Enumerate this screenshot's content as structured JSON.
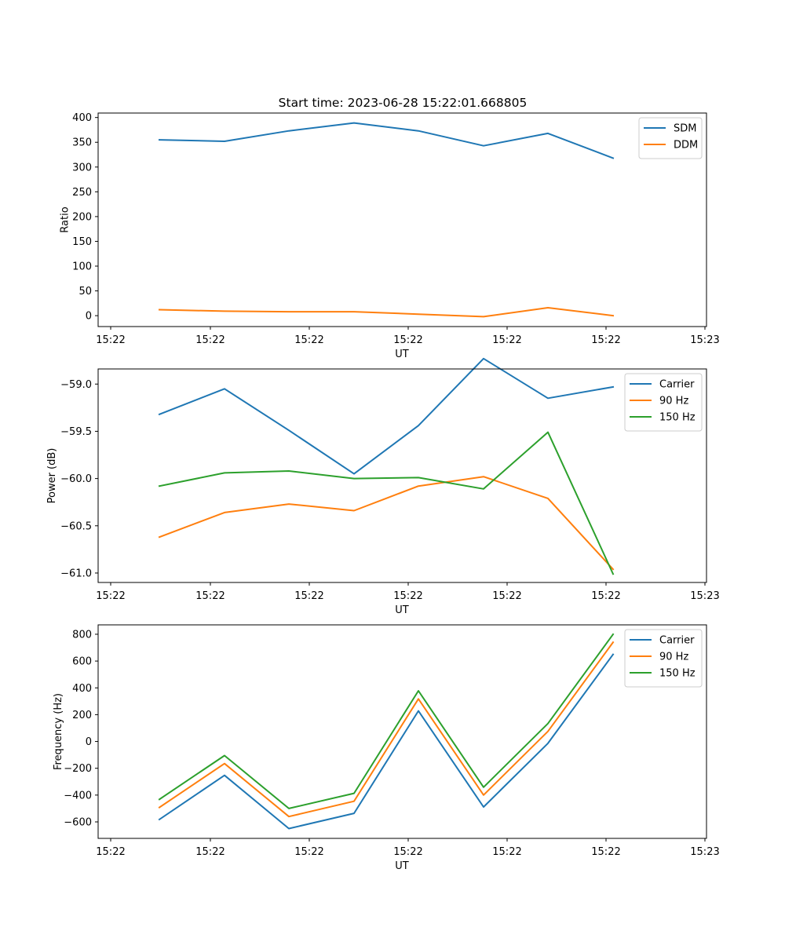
{
  "title": "Start time: 2023-06-28 15:22:01.668805",
  "colors": {
    "blue": "#1f77b4",
    "orange": "#ff7f0e",
    "green": "#2ca02c"
  },
  "chart_data": [
    {
      "type": "line",
      "xlabel": "UT",
      "ylabel": "Ratio",
      "x_tick_labels": [
        "15:22",
        "15:22",
        "15:22",
        "15:22",
        "15:22",
        "15:22",
        "15:23"
      ],
      "y_ticks": [
        0,
        50,
        100,
        150,
        200,
        250,
        300,
        350,
        400
      ],
      "y_tick_labels": [
        "0",
        "50",
        "100",
        "150",
        "200",
        "250",
        "300",
        "350",
        "400"
      ],
      "ylim": [
        -22,
        409
      ],
      "legend_position": "upper right",
      "grid": false,
      "series": [
        {
          "name": "SDM",
          "color": "#1f77b4",
          "values": [
            355,
            352,
            373,
            389,
            373,
            343,
            368,
            318
          ]
        },
        {
          "name": "DDM",
          "color": "#ff7f0e",
          "values": [
            12,
            9,
            8,
            8,
            3,
            -2,
            16,
            0
          ]
        }
      ]
    },
    {
      "type": "line",
      "xlabel": "UT",
      "ylabel": "Power (dB)",
      "x_tick_labels": [
        "15:22",
        "15:22",
        "15:22",
        "15:22",
        "15:22",
        "15:22",
        "15:23"
      ],
      "y_ticks": [
        -61.0,
        -60.5,
        -60.0,
        -59.5,
        -59.0
      ],
      "y_tick_labels": [
        "−61.0",
        "−60.5",
        "−60.0",
        "−59.5",
        "−59.0"
      ],
      "ylim": [
        -61.1,
        -58.84
      ],
      "legend_position": "upper right",
      "grid": false,
      "series": [
        {
          "name": "Carrier",
          "color": "#1f77b4",
          "values": [
            -59.32,
            -59.05,
            -59.49,
            -59.95,
            -59.44,
            -58.73,
            -59.15,
            -59.03
          ]
        },
        {
          "name": "90 Hz",
          "color": "#ff7f0e",
          "values": [
            -60.62,
            -60.36,
            -60.27,
            -60.34,
            -60.08,
            -59.98,
            -60.21,
            -60.96
          ]
        },
        {
          "name": "150 Hz",
          "color": "#2ca02c",
          "values": [
            -60.08,
            -59.94,
            -59.92,
            -60.0,
            -59.99,
            -60.11,
            -59.51,
            -61.01
          ]
        }
      ]
    },
    {
      "type": "line",
      "xlabel": "UT",
      "ylabel": "Frequency (Hz)",
      "x_tick_labels": [
        "15:22",
        "15:22",
        "15:22",
        "15:22",
        "15:22",
        "15:22",
        "15:23"
      ],
      "y_ticks": [
        -600,
        -400,
        -200,
        0,
        200,
        400,
        600,
        800
      ],
      "y_tick_labels": [
        "−600",
        "−400",
        "−200",
        "0",
        "200",
        "400",
        "600",
        "800"
      ],
      "ylim": [
        -723,
        870
      ],
      "legend_position": "upper right",
      "grid": false,
      "series": [
        {
          "name": "Carrier",
          "color": "#1f77b4",
          "values": [
            -582,
            -253,
            -650,
            -536,
            228,
            -489,
            -14,
            650
          ]
        },
        {
          "name": "90 Hz",
          "color": "#ff7f0e",
          "values": [
            -492,
            -165,
            -560,
            -446,
            318,
            -400,
            75,
            740
          ]
        },
        {
          "name": "150 Hz",
          "color": "#2ca02c",
          "values": [
            -432,
            -105,
            -500,
            -387,
            378,
            -341,
            134,
            800
          ]
        }
      ]
    }
  ]
}
